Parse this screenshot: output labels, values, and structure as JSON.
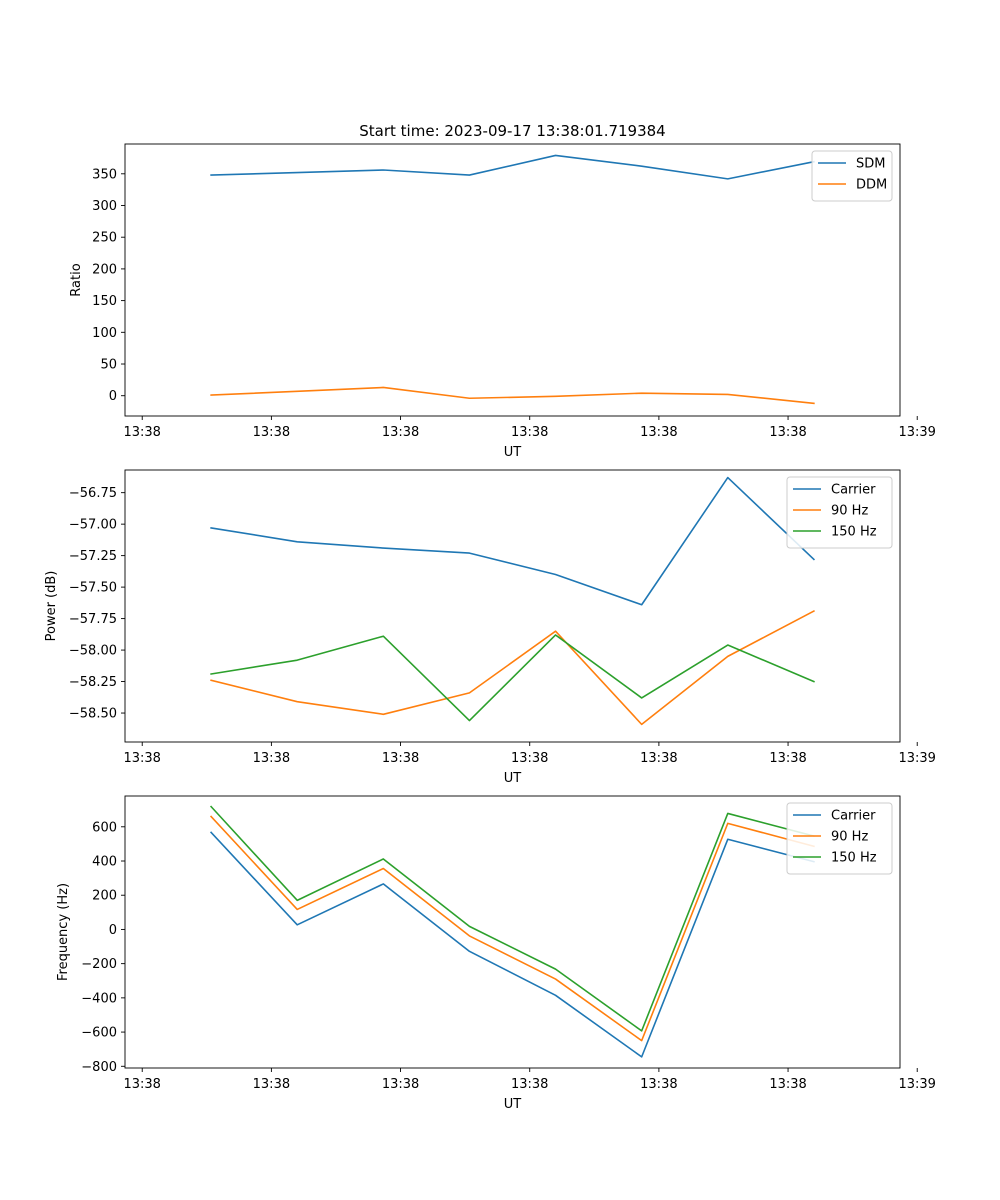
{
  "chart_data": [
    {
      "type": "line",
      "title": "Start time: 2023-09-17 13:38:01.719384",
      "xlabel": "UT",
      "ylabel": "Ratio",
      "xlim": [
        0,
        9
      ],
      "ylim": [
        -32,
        397
      ],
      "x_tick_values": [
        0.2,
        1.7,
        3.2,
        4.7,
        6.2,
        7.7,
        9.2
      ],
      "x_tick_labels": [
        "13:38",
        "13:38",
        "13:38",
        "13:38",
        "13:38",
        "13:38",
        "13:39"
      ],
      "y_ticks": [
        0,
        50,
        100,
        150,
        200,
        250,
        300,
        350
      ],
      "y_tick_labels": [
        "0",
        "50",
        "100",
        "150",
        "200",
        "250",
        "300",
        "350"
      ],
      "x": [
        1,
        2,
        3,
        4,
        5,
        6,
        7,
        8
      ],
      "legend_position": "upper-right",
      "series": [
        {
          "name": "SDM",
          "color": "#1f77b4",
          "values": [
            348,
            352,
            356,
            348,
            379,
            362,
            342,
            369
          ]
        },
        {
          "name": "DDM",
          "color": "#ff7f0e",
          "values": [
            1,
            7,
            13,
            -4,
            -1,
            4,
            2,
            -12
          ]
        }
      ]
    },
    {
      "type": "line",
      "title": "",
      "xlabel": "UT",
      "ylabel": "Power (dB)",
      "xlim": [
        0,
        9
      ],
      "ylim": [
        -58.73,
        -56.57
      ],
      "x_tick_values": [
        0.2,
        1.7,
        3.2,
        4.7,
        6.2,
        7.7,
        9.2
      ],
      "x_tick_labels": [
        "13:38",
        "13:38",
        "13:38",
        "13:38",
        "13:38",
        "13:38",
        "13:39"
      ],
      "y_ticks": [
        -58.5,
        -58.25,
        -58.0,
        -57.75,
        -57.5,
        -57.25,
        -57.0,
        -56.75
      ],
      "y_tick_labels": [
        "−58.50",
        "−58.25",
        "−58.00",
        "−57.75",
        "−57.50",
        "−57.25",
        "−57.00",
        "−56.75"
      ],
      "x": [
        1,
        2,
        3,
        4,
        5,
        6,
        7,
        8
      ],
      "legend_position": "upper-right",
      "series": [
        {
          "name": "Carrier",
          "color": "#1f77b4",
          "values": [
            -57.03,
            -57.14,
            -57.19,
            -57.23,
            -57.4,
            -57.64,
            -56.63,
            -57.28
          ]
        },
        {
          "name": "90 Hz",
          "color": "#ff7f0e",
          "values": [
            -58.24,
            -58.41,
            -58.51,
            -58.34,
            -57.85,
            -58.59,
            -58.05,
            -57.69
          ]
        },
        {
          "name": "150 Hz",
          "color": "#2ca02c",
          "values": [
            -58.19,
            -58.08,
            -57.89,
            -58.56,
            -57.88,
            -58.38,
            -57.96,
            -58.25
          ]
        }
      ]
    },
    {
      "type": "line",
      "title": "",
      "xlabel": "UT",
      "ylabel": "Frequency (Hz)",
      "xlim": [
        0,
        9
      ],
      "ylim": [
        -810,
        780
      ],
      "x_tick_values": [
        0.2,
        1.7,
        3.2,
        4.7,
        6.2,
        7.7,
        9.2
      ],
      "x_tick_labels": [
        "13:38",
        "13:38",
        "13:38",
        "13:38",
        "13:38",
        "13:38",
        "13:39"
      ],
      "y_ticks": [
        -800,
        -600,
        -400,
        -200,
        0,
        200,
        400,
        600
      ],
      "y_tick_labels": [
        "−800",
        "−600",
        "−400",
        "−200",
        "0",
        "200",
        "400",
        "600"
      ],
      "x": [
        1,
        2,
        3,
        4,
        5,
        6,
        7,
        8
      ],
      "legend_position": "upper-right",
      "series": [
        {
          "name": "Carrier",
          "color": "#1f77b4",
          "values": [
            567,
            27,
            266,
            -128,
            -385,
            -745,
            527,
            396
          ]
        },
        {
          "name": "90 Hz",
          "color": "#ff7f0e",
          "values": [
            660,
            117,
            356,
            -38,
            -290,
            -650,
            620,
            486
          ]
        },
        {
          "name": "150 Hz",
          "color": "#2ca02c",
          "values": [
            718,
            170,
            412,
            18,
            -232,
            -593,
            678,
            546
          ]
        }
      ]
    }
  ]
}
